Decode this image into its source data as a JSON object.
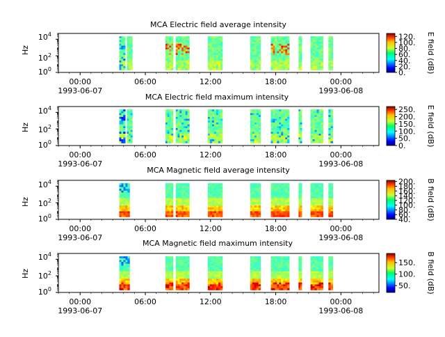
{
  "figure": {
    "x_ticks": [
      "00:00",
      "06:00",
      "12:00",
      "18:00",
      "00:00"
    ],
    "x_tick_hours": [
      0,
      6,
      12,
      18,
      24
    ],
    "start_date": "1993-06-07",
    "end_date": "1993-06-08",
    "x_range_hours": [
      -2,
      27.5
    ],
    "y_ticks": [
      "10^0",
      "10^2",
      "10^4"
    ],
    "y_exponents": [
      0,
      2,
      4
    ]
  },
  "chart_data": [
    {
      "type": "heatmap",
      "title": "MCA  Electric field average intensity",
      "ylabel": "Hz",
      "yscale": "log",
      "ylim": [
        1,
        50000
      ],
      "colorbar_label": "E field (dB)",
      "colorbar_ticks": [
        "0.",
        "20.",
        "40.",
        "60.",
        "80.",
        "100.",
        "120."
      ],
      "colorbar_range": [
        0,
        130
      ],
      "data_intervals_hours": [
        [
          3.6,
          4.15
        ],
        [
          4.3,
          4.8
        ],
        [
          7.85,
          8.55
        ],
        [
          8.8,
          10.05
        ],
        [
          11.75,
          13.1
        ],
        [
          15.65,
          16.6
        ],
        [
          17.55,
          19.25
        ],
        [
          20.1,
          20.4
        ],
        [
          21.2,
          22.35
        ],
        [
          22.85,
          23.25
        ]
      ],
      "colormap": "jet"
    },
    {
      "type": "heatmap",
      "title": "MCA  Electric field maximum intensity",
      "ylabel": "Hz",
      "yscale": "log",
      "ylim": [
        1,
        50000
      ],
      "colorbar_label": "E field (dB)",
      "colorbar_ticks": [
        "0.",
        "50.",
        "100.",
        "150.",
        "200.",
        "250."
      ],
      "colorbar_range": [
        0,
        270
      ],
      "data_intervals_hours": [
        [
          3.6,
          4.15
        ],
        [
          4.3,
          4.8
        ],
        [
          7.85,
          8.55
        ],
        [
          8.8,
          10.05
        ],
        [
          11.75,
          13.1
        ],
        [
          15.65,
          16.6
        ],
        [
          17.55,
          19.25
        ],
        [
          20.1,
          20.4
        ],
        [
          21.2,
          22.35
        ],
        [
          22.85,
          23.25
        ]
      ],
      "colormap": "jet"
    },
    {
      "type": "heatmap",
      "title": "MCA  Magnetic field average intensity",
      "ylabel": "Hz",
      "yscale": "log",
      "ylim": [
        1,
        50000
      ],
      "colorbar_label": "B field (dB)",
      "colorbar_ticks": [
        "40.",
        "60.",
        "80.",
        "100.",
        "120.",
        "140.",
        "160.",
        "180.",
        "200."
      ],
      "colorbar_range": [
        40,
        205
      ],
      "data_intervals_hours": [
        [
          3.6,
          4.55
        ],
        [
          7.85,
          8.55
        ],
        [
          8.8,
          10.05
        ],
        [
          11.75,
          13.1
        ],
        [
          15.65,
          16.6
        ],
        [
          17.55,
          19.25
        ],
        [
          20.1,
          20.4
        ],
        [
          21.2,
          22.35
        ],
        [
          22.85,
          23.25
        ]
      ],
      "colormap": "jet"
    },
    {
      "type": "heatmap",
      "title": "MCA  Magnetic field maximum intensity",
      "ylabel": "Hz",
      "yscale": "log",
      "ylim": [
        1,
        50000
      ],
      "colorbar_label": "B field (dB)",
      "colorbar_ticks": [
        "50.",
        "100.",
        "150."
      ],
      "colorbar_range": [
        20,
        190
      ],
      "data_intervals_hours": [
        [
          3.6,
          4.55
        ],
        [
          7.85,
          8.55
        ],
        [
          8.8,
          10.05
        ],
        [
          11.75,
          13.1
        ],
        [
          15.65,
          16.6
        ],
        [
          17.55,
          19.25
        ],
        [
          20.1,
          20.4
        ],
        [
          21.2,
          22.35
        ],
        [
          22.85,
          23.25
        ]
      ],
      "colormap": "jet"
    }
  ]
}
